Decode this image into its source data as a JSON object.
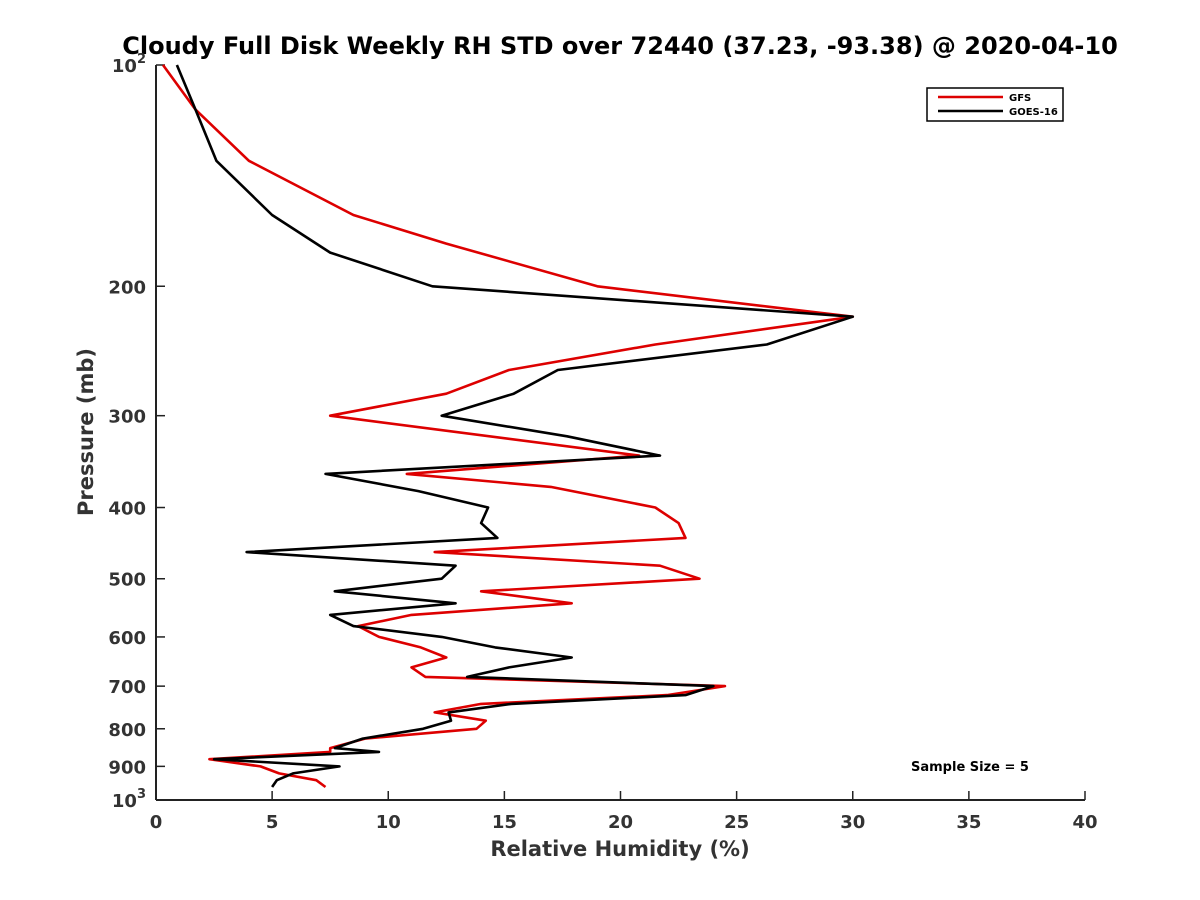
{
  "chart_data": {
    "type": "line",
    "title": "Cloudy Full Disk Weekly RH STD over 72440 (37.23, -93.38) @ 2020-04-10",
    "xlabel": "Relative Humidity (%)",
    "ylabel": "Pressure (mb)",
    "xlim": [
      0,
      40
    ],
    "ylim": [
      100,
      1000
    ],
    "yscale": "log",
    "y_reversed": true,
    "x_ticks": [
      "0",
      "5",
      "10",
      "15",
      "20",
      "25",
      "30",
      "35",
      "40"
    ],
    "y_ticks": [
      {
        "value": 100,
        "label": "10",
        "sup": "2"
      },
      {
        "value": 200,
        "label": "200",
        "sup": ""
      },
      {
        "value": 300,
        "label": "300",
        "sup": ""
      },
      {
        "value": 400,
        "label": "400",
        "sup": ""
      },
      {
        "value": 500,
        "label": "500",
        "sup": ""
      },
      {
        "value": 600,
        "label": "600",
        "sup": ""
      },
      {
        "value": 700,
        "label": "700",
        "sup": ""
      },
      {
        "value": 800,
        "label": "800",
        "sup": ""
      },
      {
        "value": 900,
        "label": "900",
        "sup": ""
      },
      {
        "value": 1000,
        "label": "10",
        "sup": "3"
      }
    ],
    "grid": false,
    "legend_position": "top-right",
    "annotation": "Sample Size = 5",
    "series": [
      {
        "name": "GFS",
        "color": "#dd0000",
        "points": [
          [
            0.3,
            100
          ],
          [
            1.7,
            115
          ],
          [
            4.0,
            135
          ],
          [
            8.5,
            160
          ],
          [
            12.5,
            175
          ],
          [
            19.0,
            200
          ],
          [
            30.0,
            220
          ],
          [
            21.5,
            240
          ],
          [
            15.2,
            260
          ],
          [
            12.5,
            280
          ],
          [
            7.5,
            300
          ],
          [
            20.8,
            340
          ],
          [
            10.8,
            360
          ],
          [
            17.0,
            375
          ],
          [
            21.5,
            400
          ],
          [
            22.5,
            420
          ],
          [
            22.8,
            440
          ],
          [
            12.0,
            460
          ],
          [
            21.7,
            480
          ],
          [
            23.4,
            500
          ],
          [
            14.0,
            520
          ],
          [
            17.9,
            540
          ],
          [
            11.0,
            560
          ],
          [
            8.7,
            580
          ],
          [
            9.6,
            600
          ],
          [
            11.4,
            620
          ],
          [
            12.5,
            640
          ],
          [
            11.0,
            660
          ],
          [
            11.6,
            680
          ],
          [
            24.5,
            700
          ],
          [
            22.0,
            720
          ],
          [
            14.0,
            740
          ],
          [
            12.0,
            760
          ],
          [
            14.2,
            780
          ],
          [
            13.8,
            800
          ],
          [
            9.0,
            825
          ],
          [
            7.5,
            850
          ],
          [
            7.5,
            860
          ],
          [
            2.3,
            880
          ],
          [
            4.5,
            900
          ],
          [
            5.3,
            920
          ],
          [
            6.9,
            940
          ],
          [
            7.3,
            960
          ]
        ]
      },
      {
        "name": "GOES-16",
        "color": "#000000",
        "points": [
          [
            0.9,
            100
          ],
          [
            1.7,
            115
          ],
          [
            2.6,
            135
          ],
          [
            5.0,
            160
          ],
          [
            7.5,
            180
          ],
          [
            11.9,
            200
          ],
          [
            30.0,
            220
          ],
          [
            26.3,
            240
          ],
          [
            17.3,
            260
          ],
          [
            15.4,
            280
          ],
          [
            12.3,
            300
          ],
          [
            17.7,
            320
          ],
          [
            21.7,
            340
          ],
          [
            7.3,
            360
          ],
          [
            11.3,
            380
          ],
          [
            14.3,
            400
          ],
          [
            14.0,
            420
          ],
          [
            14.7,
            440
          ],
          [
            3.9,
            460
          ],
          [
            12.9,
            480
          ],
          [
            12.3,
            500
          ],
          [
            7.7,
            520
          ],
          [
            12.9,
            540
          ],
          [
            7.5,
            560
          ],
          [
            8.5,
            580
          ],
          [
            12.3,
            600
          ],
          [
            14.6,
            620
          ],
          [
            17.9,
            640
          ],
          [
            15.2,
            660
          ],
          [
            13.4,
            680
          ],
          [
            24.0,
            700
          ],
          [
            22.8,
            720
          ],
          [
            15.3,
            740
          ],
          [
            12.6,
            760
          ],
          [
            12.7,
            780
          ],
          [
            11.5,
            800
          ],
          [
            8.9,
            825
          ],
          [
            7.7,
            850
          ],
          [
            9.6,
            860
          ],
          [
            2.5,
            880
          ],
          [
            7.9,
            900
          ],
          [
            5.9,
            920
          ],
          [
            5.2,
            940
          ],
          [
            5.0,
            960
          ]
        ]
      }
    ]
  }
}
